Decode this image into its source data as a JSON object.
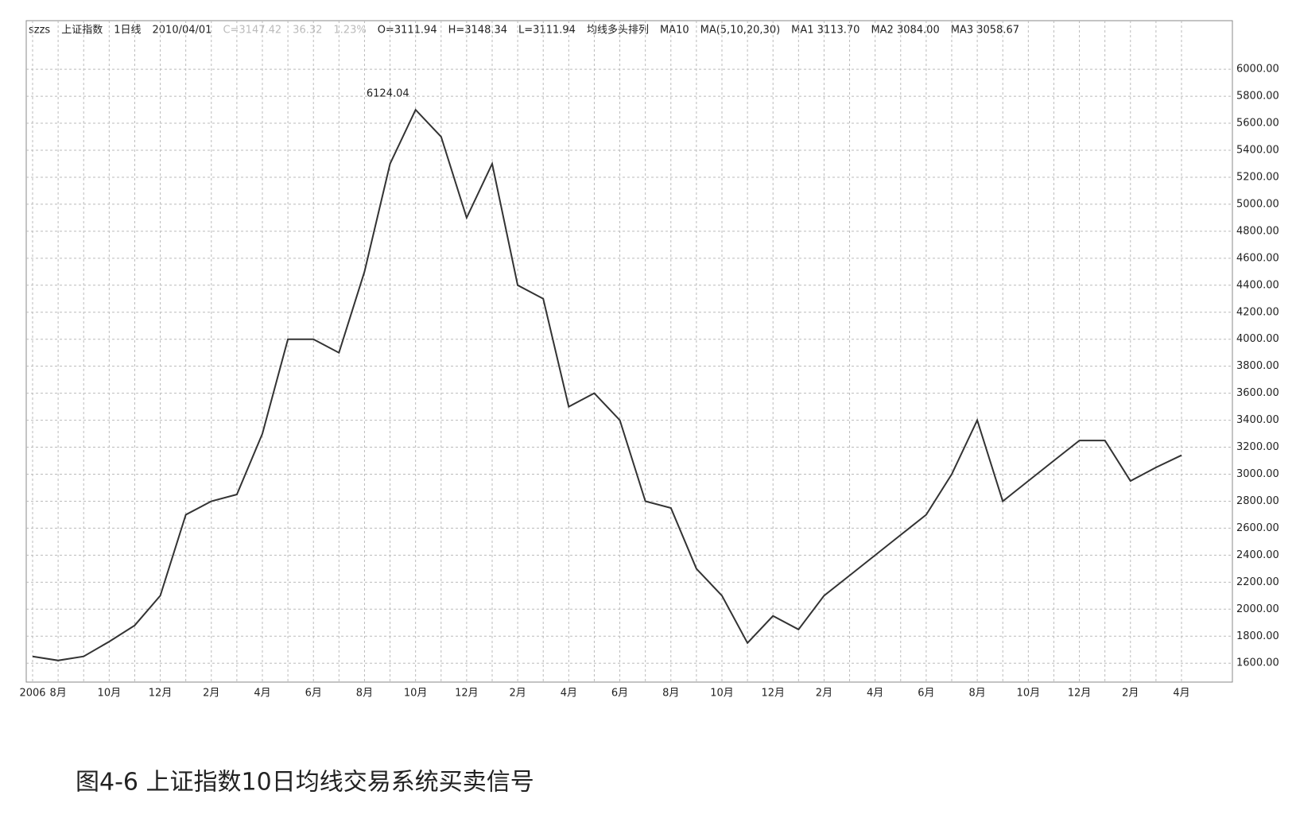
{
  "chart_data": {
    "type": "line",
    "header": [
      "szzs",
      "上证指数",
      "1日线",
      "2010/04/01",
      "C=3147.42",
      "36.32",
      "1.23%",
      "O=3111.94",
      "H=3148.34",
      "L=3111.94",
      "均线多头排列",
      "MA10",
      "MA(5,10,20,30)",
      "MA1 3113.70",
      "MA2 3084.00",
      "MA3 3058.67"
    ],
    "annotation": "6124.04",
    "caption": "图4-6 上证指数10日均线交易系统买卖信号",
    "categories": [
      "2006",
      "8月",
      null,
      "10月",
      null,
      "12月",
      null,
      "2月",
      null,
      "4月",
      null,
      "6月",
      null,
      "8月",
      null,
      "10月",
      null,
      "12月",
      null,
      "2月",
      null,
      "4月",
      null,
      "6月",
      null,
      "8月",
      null,
      "10月",
      null,
      "12月",
      null,
      "2月",
      null,
      "4月",
      null,
      "6月",
      null,
      "8月",
      null,
      "10月",
      null,
      "12月",
      null,
      "2月",
      null,
      "4月"
    ],
    "values": [
      1650,
      1620,
      1650,
      1760,
      1880,
      2100,
      2700,
      2800,
      2850,
      3300,
      4000,
      4000,
      3900,
      4500,
      5300,
      5700,
      5500,
      4900,
      5300,
      4400,
      4300,
      3500,
      3600,
      3400,
      2800,
      2750,
      2300,
      2100,
      1750,
      1950,
      1850,
      2100,
      2250,
      2400,
      2550,
      2700,
      3000,
      3400,
      2800,
      2950,
      3100,
      3250,
      3250,
      2950,
      3050,
      3140
    ],
    "color": "#333333",
    "ylim": [
      1460,
      6360
    ],
    "yticks": [
      {
        "value": 1600,
        "label": "1600.00"
      },
      {
        "value": 1800,
        "label": "1800.00"
      },
      {
        "value": 2000,
        "label": "2000.00"
      },
      {
        "value": 2200,
        "label": "2200.00"
      },
      {
        "value": 2400,
        "label": "2400.00"
      },
      {
        "value": 2600,
        "label": "2600.00"
      },
      {
        "value": 2800,
        "label": "2800.00"
      },
      {
        "value": 3000,
        "label": "3000.00"
      },
      {
        "value": 3200,
        "label": "3200.00"
      },
      {
        "value": 3400,
        "label": "3400.00"
      },
      {
        "value": 3600,
        "label": "3600.00"
      },
      {
        "value": 3800,
        "label": "3800.00"
      },
      {
        "value": 4000,
        "label": "4000.00"
      },
      {
        "value": 4200,
        "label": "4200.00"
      },
      {
        "value": 4400,
        "label": "4400.00"
      },
      {
        "value": 4600,
        "label": "4600.00"
      },
      {
        "value": 4800,
        "label": "4800.00"
      },
      {
        "value": 5000,
        "label": "5000.00"
      },
      {
        "value": 5200,
        "label": "5200.00"
      },
      {
        "value": 5400,
        "label": "5400.00"
      },
      {
        "value": 5600,
        "label": "5600.00"
      },
      {
        "value": 5800,
        "label": "5800.00"
      },
      {
        "value": 6000,
        "label": "6000.00"
      }
    ],
    "grid": true
  }
}
